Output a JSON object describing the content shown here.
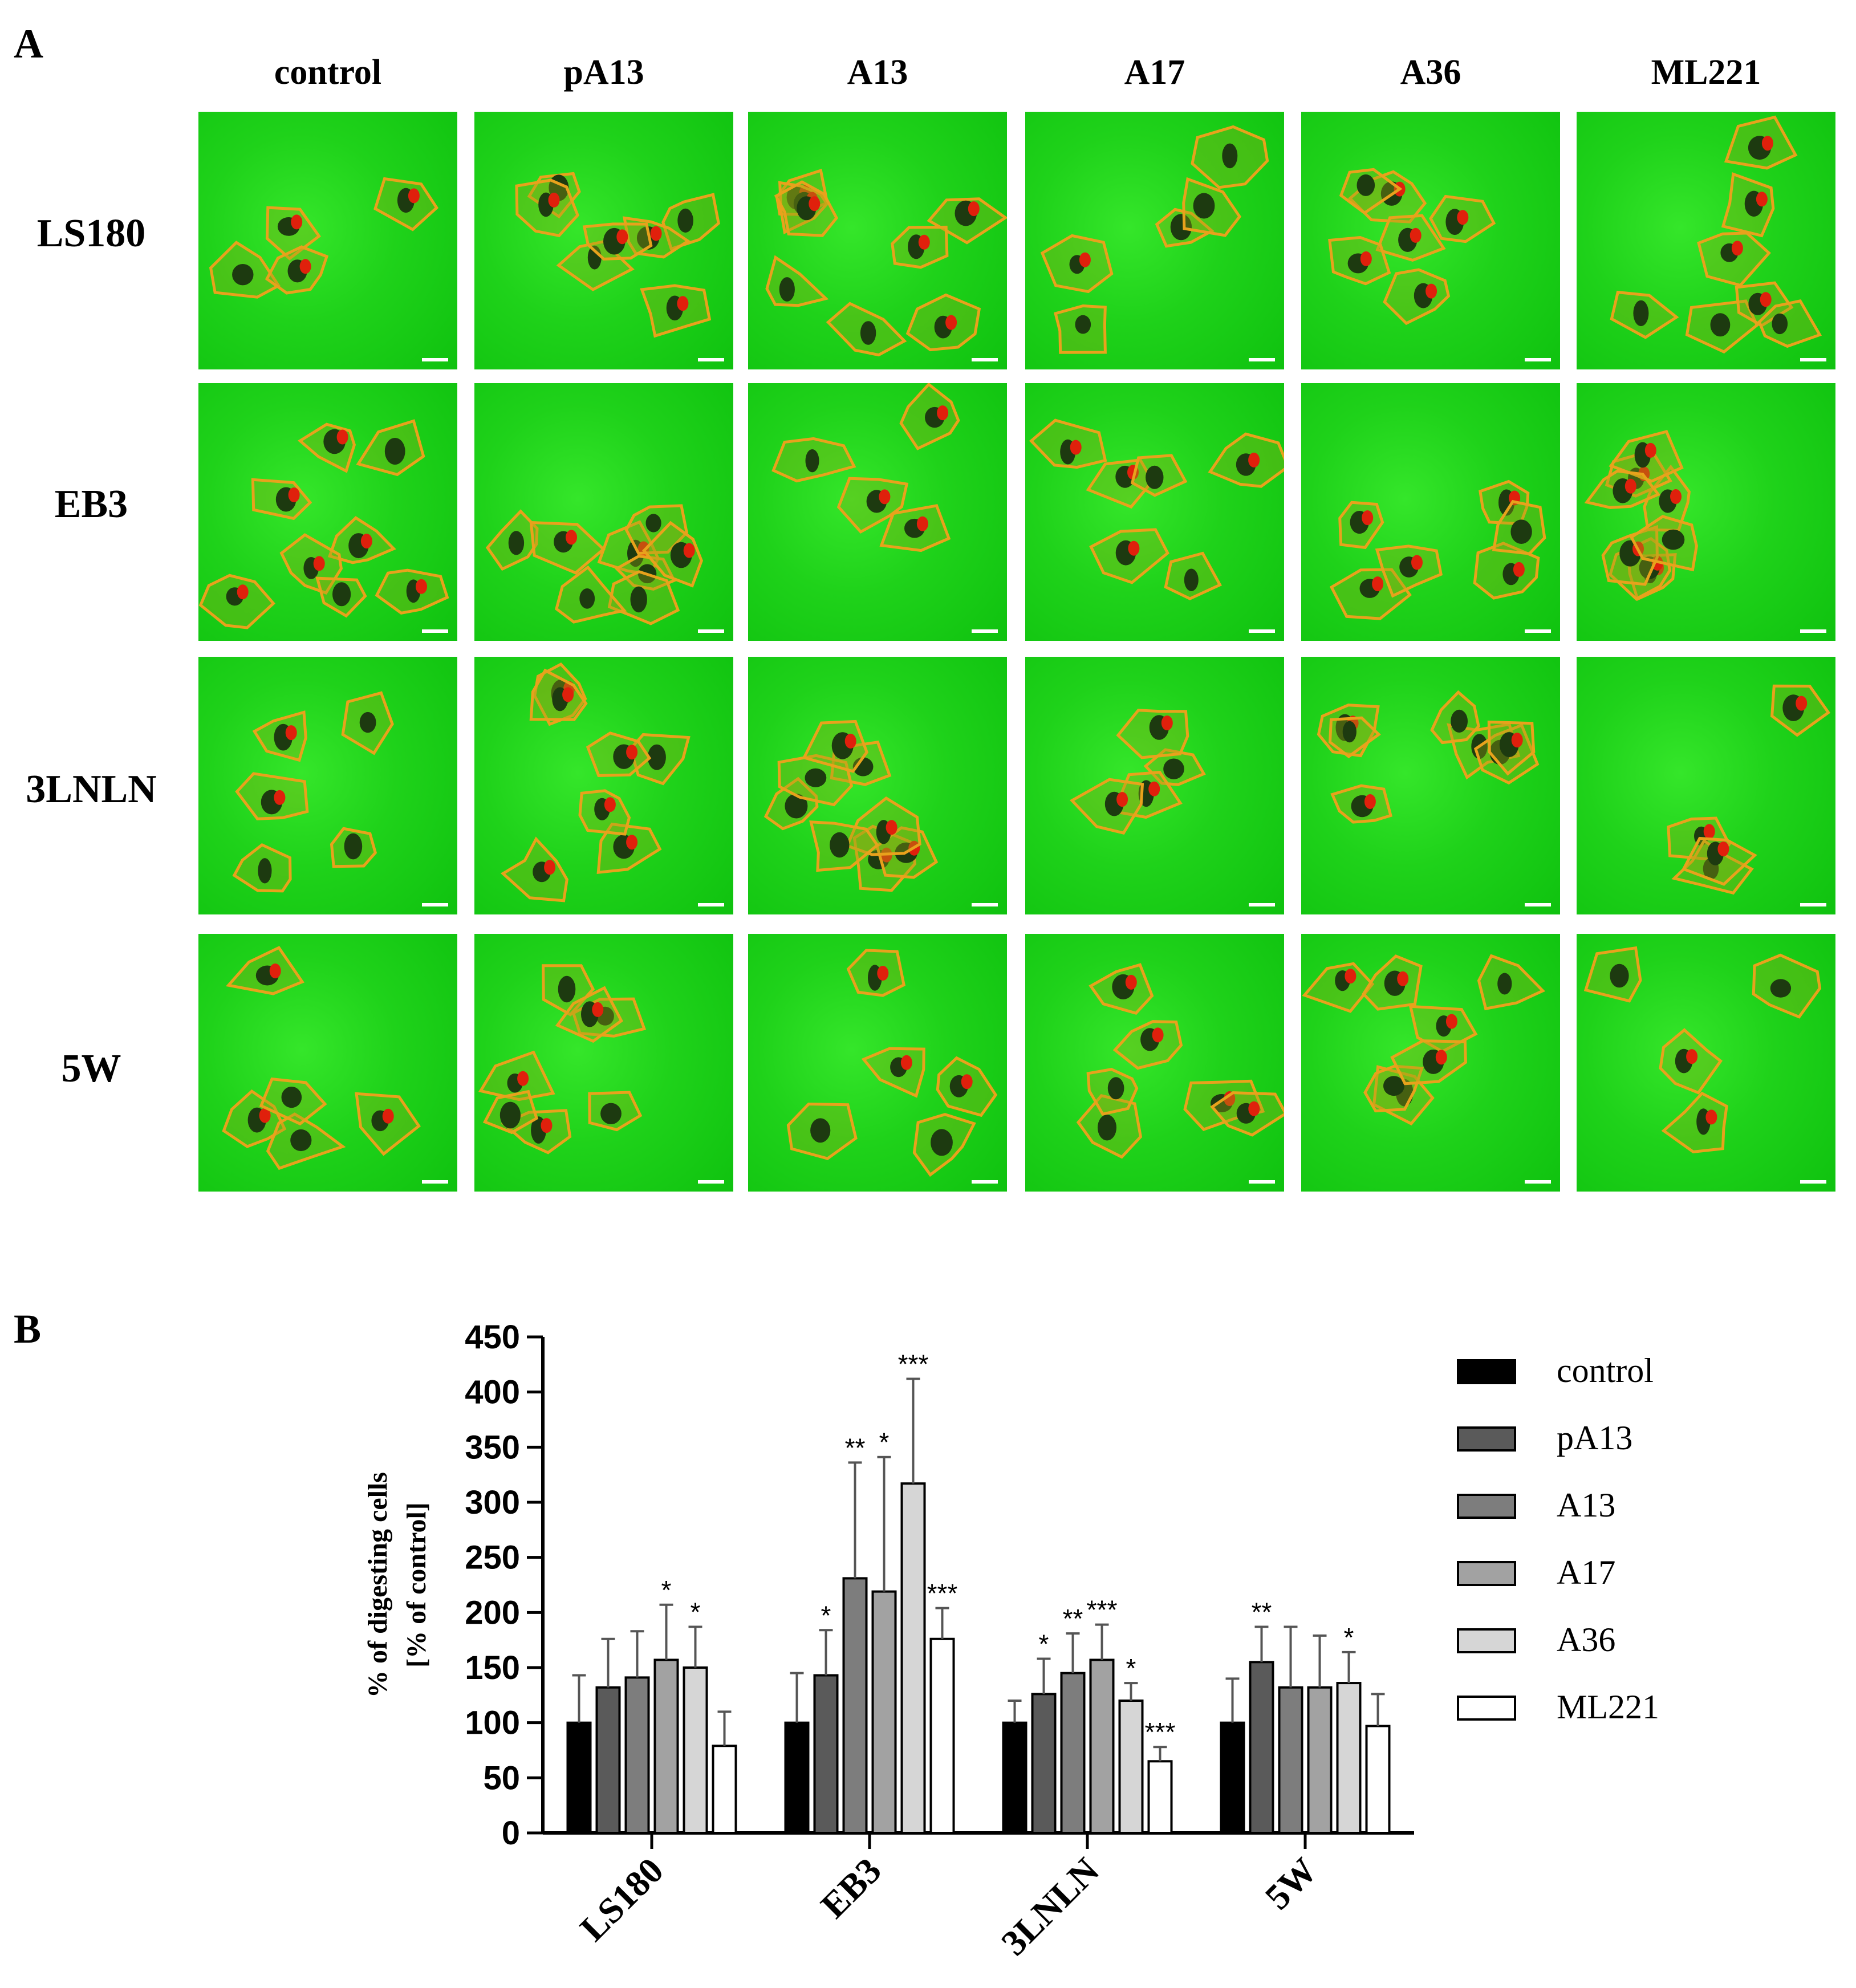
{
  "panel_a": {
    "letter": "A",
    "columns": [
      "control",
      "pA13",
      "A13",
      "A17",
      "A36",
      "ML221"
    ],
    "rows": [
      "LS180",
      "EB3",
      "3LNLN",
      "5W"
    ]
  },
  "panel_b": {
    "letter": "B"
  },
  "chart_data": {
    "type": "bar",
    "title": "",
    "xlabel": "",
    "ylabel": "% of digesting cells [% of control]",
    "ylabel_lines": [
      "% of digesting cells",
      "[% of control]"
    ],
    "ylim": [
      0,
      450
    ],
    "yticks": [
      0,
      50,
      100,
      150,
      200,
      250,
      300,
      350,
      400,
      450
    ],
    "categories": [
      "LS180",
      "EB3",
      "3LNLN",
      "5W"
    ],
    "legend_position": "right",
    "grid": false,
    "series": [
      {
        "name": "control",
        "color": "#000000",
        "values": [
          100,
          100,
          100,
          100
        ],
        "errors": [
          43,
          45,
          20,
          40
        ],
        "sig": [
          "",
          "",
          "",
          ""
        ]
      },
      {
        "name": "pA13",
        "color": "#5a5a5a",
        "values": [
          132,
          143,
          126,
          155
        ],
        "errors": [
          44,
          41,
          32,
          32
        ],
        "sig": [
          "",
          "*",
          "*",
          "**"
        ]
      },
      {
        "name": "A13",
        "color": "#7d7d7d",
        "values": [
          141,
          231,
          145,
          132
        ],
        "errors": [
          42,
          105,
          36,
          55
        ],
        "sig": [
          "",
          "**",
          "**",
          ""
        ]
      },
      {
        "name": "A17",
        "color": "#a2a2a2",
        "values": [
          157,
          219,
          157,
          132
        ],
        "errors": [
          50,
          122,
          32,
          47
        ],
        "sig": [
          "*",
          "*",
          "***",
          ""
        ]
      },
      {
        "name": "A36",
        "color": "#d6d6d6",
        "values": [
          150,
          317,
          120,
          136
        ],
        "errors": [
          37,
          95,
          16,
          28
        ],
        "sig": [
          "*",
          "***",
          "*",
          "*"
        ]
      },
      {
        "name": "ML221",
        "color": "#ffffff",
        "values": [
          79,
          176,
          65,
          97
        ],
        "errors": [
          31,
          28,
          13,
          29
        ],
        "sig": [
          "",
          "***",
          "***",
          ""
        ]
      }
    ]
  }
}
